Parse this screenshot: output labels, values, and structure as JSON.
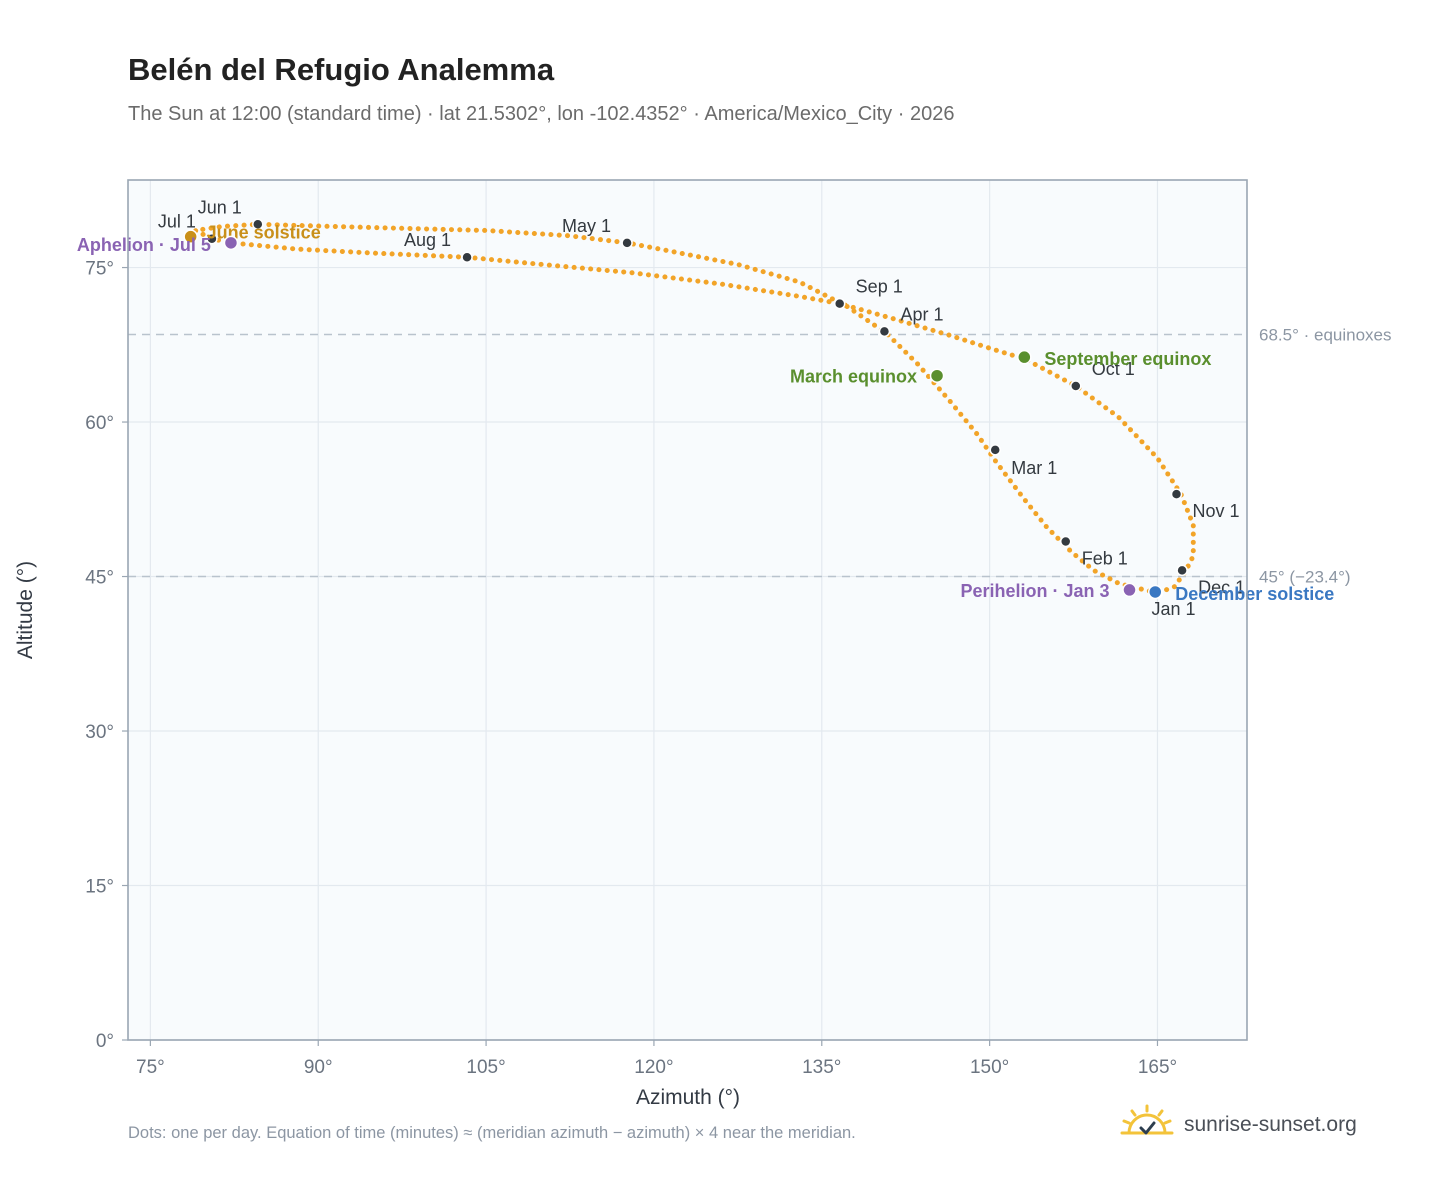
{
  "header": {
    "title": "Belén del Refugio Analemma",
    "subtitle": "The Sun at 12:00 (standard time) · lat 21.5302°, lon -102.4352° · America/Mexico_City · 2026"
  },
  "footer": {
    "note": "Dots: one per day. Equation of time (minutes) ≈ (meridian azimuth − azimuth) × 4 near the meridian.",
    "brand": "sunrise-sunset.org",
    "brand_icon": "sun-logo-icon"
  },
  "colors": {
    "path": "#f2a428",
    "month_marker": "#343a40",
    "equinox": "#5a8f2e",
    "perihelion": "#8a63b3",
    "aphelion": "#8a63b3",
    "december_solstice": "#3a78c2",
    "june_solstice": "#c9901a",
    "plot_background": "#f8fbfd",
    "grid": "#e3e9ef",
    "reference_line": "#b9c3cd"
  },
  "chart_data": {
    "type": "scatter",
    "xlabel": "Azimuth (°)",
    "ylabel": "Altitude (°)",
    "xlim": [
      73,
      173
    ],
    "ylim": [
      0,
      83.5
    ],
    "xticks": [
      75,
      90,
      105,
      120,
      135,
      150,
      165
    ],
    "yticks": [
      0,
      15,
      30,
      45,
      60,
      75
    ],
    "x_tick_labels": [
      "75°",
      "90°",
      "105°",
      "120°",
      "135°",
      "150°",
      "165°"
    ],
    "y_tick_labels": [
      "0°",
      "15°",
      "30°",
      "45°",
      "60°",
      "75°"
    ],
    "grid": true,
    "analemma_path": [
      [
        165.0,
        43.4
      ],
      [
        161.6,
        44.3
      ],
      [
        159.3,
        45.6
      ],
      [
        157.3,
        47.4
      ],
      [
        155.1,
        49.8
      ],
      [
        153.1,
        52.5
      ],
      [
        150.6,
        56.1
      ],
      [
        148.9,
        58.8
      ],
      [
        146.4,
        62.1
      ],
      [
        143.6,
        65.6
      ],
      [
        140.8,
        68.6
      ],
      [
        137.3,
        71.2
      ],
      [
        133.0,
        73.6
      ],
      [
        127.5,
        75.3
      ],
      [
        120.5,
        76.8
      ],
      [
        117.6,
        77.4
      ],
      [
        112.3,
        78.1
      ],
      [
        105.0,
        78.6
      ],
      [
        97.8,
        78.8
      ],
      [
        91.0,
        79.0
      ],
      [
        84.6,
        79.2
      ],
      [
        81.5,
        79.0
      ],
      [
        79.0,
        78.6
      ],
      [
        80.5,
        77.8
      ],
      [
        82.2,
        77.4
      ],
      [
        88.0,
        76.8
      ],
      [
        95.0,
        76.4
      ],
      [
        103.3,
        76.0
      ],
      [
        110.0,
        75.3
      ],
      [
        118.0,
        74.5
      ],
      [
        126.0,
        73.4
      ],
      [
        133.0,
        72.2
      ],
      [
        136.6,
        71.5
      ],
      [
        141.5,
        70.0
      ],
      [
        146.5,
        68.4
      ],
      [
        150.2,
        67.1
      ],
      [
        153.2,
        66.1
      ],
      [
        157.7,
        63.5
      ],
      [
        161.5,
        60.5
      ],
      [
        165.0,
        56.5
      ],
      [
        167.1,
        53.0
      ],
      [
        168.2,
        50.0
      ],
      [
        168.2,
        47.0
      ],
      [
        167.5,
        45.5
      ],
      [
        166.5,
        44.0
      ],
      [
        165.0,
        43.4
      ]
    ],
    "month_markers": [
      {
        "label": "Jan 1",
        "x": 165.0,
        "y": 43.4
      },
      {
        "label": "Feb 1",
        "x": 156.8,
        "y": 48.4
      },
      {
        "label": "Mar 1",
        "x": 150.5,
        "y": 57.3
      },
      {
        "label": "Apr 1",
        "x": 140.6,
        "y": 68.8
      },
      {
        "label": "May 1",
        "x": 117.6,
        "y": 77.4
      },
      {
        "label": "Jun 1",
        "x": 84.6,
        "y": 79.2
      },
      {
        "label": "Jul 1",
        "x": 80.5,
        "y": 77.8
      },
      {
        "label": "Aug 1",
        "x": 103.3,
        "y": 76.0
      },
      {
        "label": "Sep 1",
        "x": 136.6,
        "y": 71.5
      },
      {
        "label": "Oct 1",
        "x": 157.7,
        "y": 63.5
      },
      {
        "label": "Nov 1",
        "x": 166.7,
        "y": 53.0
      },
      {
        "label": "Dec 1",
        "x": 167.2,
        "y": 45.6
      }
    ],
    "events": [
      {
        "key": "march_equinox",
        "label": "March equinox",
        "x": 145.3,
        "y": 64.5
      },
      {
        "key": "september_equinox",
        "label": "September equinox",
        "x": 153.1,
        "y": 66.3
      },
      {
        "key": "june_solstice",
        "label": "June solstice",
        "x": 78.6,
        "y": 78.0
      },
      {
        "key": "december_solstice",
        "label": "December solstice",
        "x": 164.8,
        "y": 43.5
      },
      {
        "key": "perihelion",
        "label": "Perihelion · Jan 3",
        "x": 162.5,
        "y": 43.7
      },
      {
        "key": "aphelion",
        "label": "Aphelion · Jul 5",
        "x": 82.2,
        "y": 77.4
      }
    ],
    "reference_lines": [
      {
        "y": 68.5,
        "label": "68.5° · equinoxes"
      },
      {
        "y": 45,
        "label": "45° (−23.4°)"
      }
    ]
  }
}
